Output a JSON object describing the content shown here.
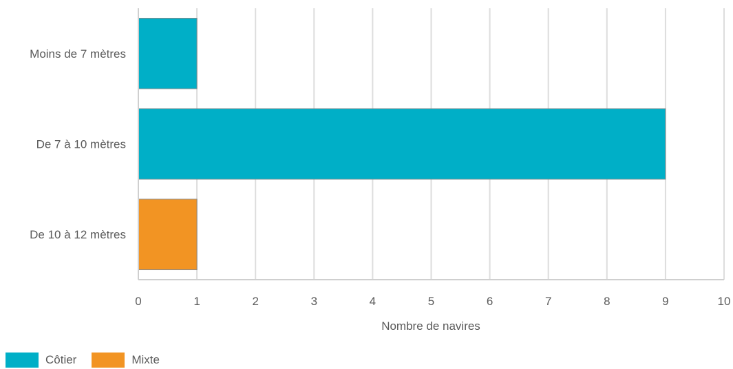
{
  "chart_data": {
    "type": "bar",
    "orientation": "horizontal",
    "categories": [
      "Moins de 7 mètres",
      "De 7 à 10 mètres",
      "De 10 à 12 mètres"
    ],
    "series": [
      {
        "name": "Côtier",
        "color": "#00AFC7",
        "values": [
          1,
          9,
          0
        ]
      },
      {
        "name": "Mixte",
        "color": "#F29423",
        "values": [
          0,
          0,
          1
        ]
      }
    ],
    "xlabel": "Nombre de navires",
    "ylabel": "",
    "xlim": [
      0,
      10
    ],
    "xticks": [
      0,
      1,
      2,
      3,
      4,
      5,
      6,
      7,
      8,
      9,
      10
    ],
    "grid": true,
    "legend_position": "bottom-left"
  }
}
